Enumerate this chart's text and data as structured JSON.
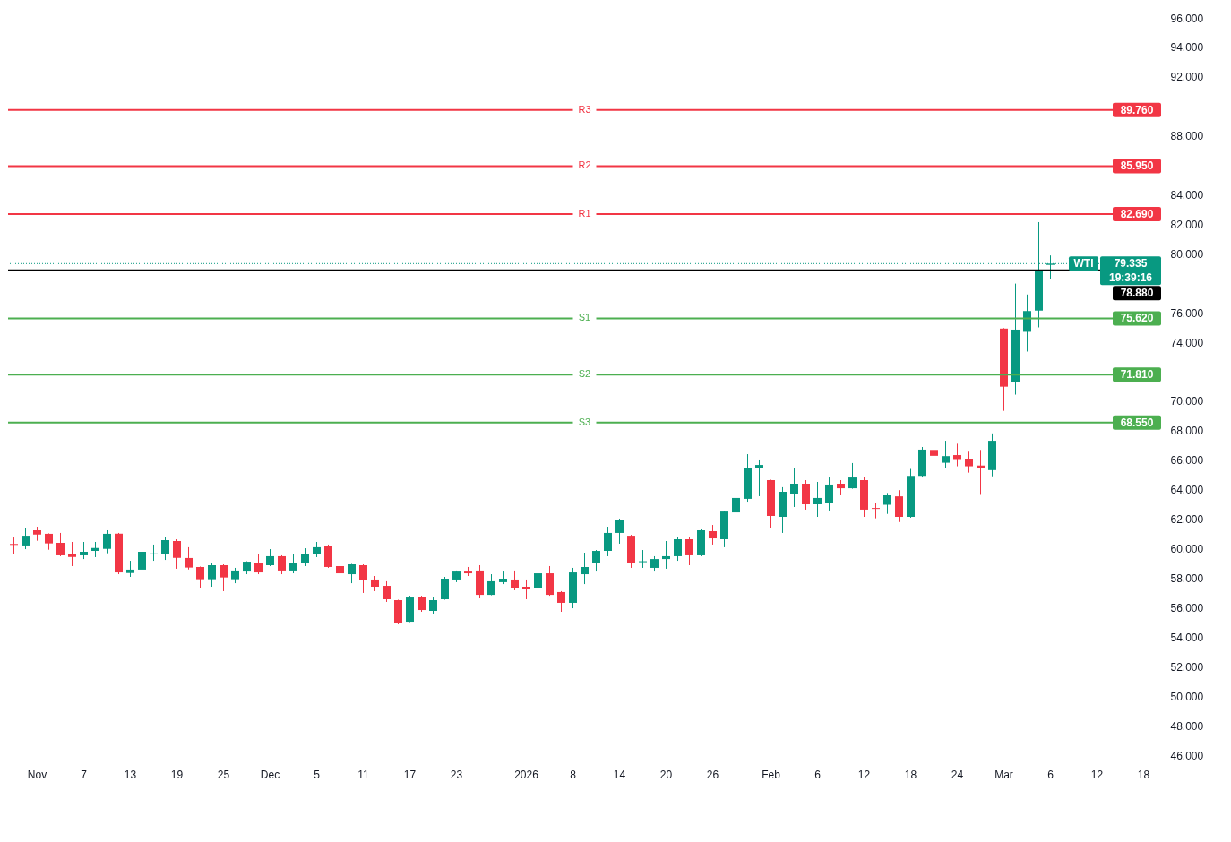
{
  "chart_data": {
    "type": "candlestick",
    "categories": [
      null,
      null,
      "Nov",
      null,
      null,
      null,
      "7",
      null,
      null,
      null,
      "13",
      null,
      null,
      null,
      "19",
      null,
      null,
      null,
      "25",
      null,
      null,
      null,
      "Dec",
      null,
      null,
      null,
      "5",
      null,
      null,
      null,
      "11",
      null,
      null,
      null,
      "17",
      null,
      null,
      null,
      "23",
      null,
      null,
      null,
      null,
      null,
      "2026",
      null,
      null,
      null,
      "8",
      null,
      null,
      null,
      "14",
      null,
      null,
      null,
      "20",
      null,
      null,
      null,
      "26",
      null,
      null,
      null,
      null,
      "Feb",
      null,
      null,
      null,
      "6",
      null,
      null,
      null,
      "12",
      null,
      null,
      null,
      "18",
      null,
      null,
      null,
      "24",
      null,
      null,
      null,
      "Mar",
      null,
      null,
      null,
      "6",
      null,
      null,
      null,
      "12",
      null,
      null,
      null,
      "18",
      null
    ],
    "ohlc": [
      [
        60.32,
        60.76,
        59.61,
        60.26
      ],
      [
        60.22,
        61.37,
        59.97,
        60.88
      ],
      [
        61.25,
        61.49,
        60.54,
        60.96
      ],
      [
        61.01,
        61.04,
        59.93,
        60.36
      ],
      [
        60.4,
        61.07,
        59.49,
        59.55
      ],
      [
        59.61,
        60.46,
        58.82,
        59.44
      ],
      [
        59.55,
        60.46,
        59.3,
        59.79
      ],
      [
        59.85,
        60.46,
        59.43,
        60.05
      ],
      [
        59.99,
        61.25,
        59.69,
        61.01
      ],
      [
        61.02,
        61.07,
        58.27,
        58.39
      ],
      [
        58.35,
        59.18,
        58.09,
        58.58
      ],
      [
        58.58,
        60.46,
        58.55,
        59.79
      ],
      [
        59.62,
        60.28,
        59.18,
        59.68
      ],
      [
        59.61,
        60.82,
        59.24,
        60.58
      ],
      [
        60.52,
        60.64,
        58.64,
        59.38
      ],
      [
        59.37,
        60.1,
        58.59,
        58.72
      ],
      [
        58.76,
        58.79,
        57.36,
        57.93
      ],
      [
        57.93,
        59.06,
        57.42,
        58.88
      ],
      [
        58.88,
        58.94,
        57.12,
        58.05
      ],
      [
        57.93,
        58.7,
        57.66,
        58.52
      ],
      [
        58.45,
        59.15,
        58.27,
        59.12
      ],
      [
        59.06,
        59.61,
        58.27,
        58.39
      ],
      [
        58.88,
        59.97,
        58.82,
        59.49
      ],
      [
        59.49,
        59.55,
        58.27,
        58.52
      ],
      [
        58.52,
        59.61,
        58.33,
        59.06
      ],
      [
        59.0,
        60.03,
        58.82,
        59.67
      ],
      [
        59.61,
        60.46,
        59.43,
        60.1
      ],
      [
        60.16,
        60.28,
        58.7,
        58.76
      ],
      [
        58.82,
        59.18,
        58.15,
        58.33
      ],
      [
        58.27,
        58.97,
        57.66,
        58.94
      ],
      [
        58.88,
        58.94,
        57.0,
        57.85
      ],
      [
        57.91,
        58.15,
        57.12,
        57.42
      ],
      [
        57.48,
        57.79,
        56.39,
        56.57
      ],
      [
        56.51,
        56.54,
        54.87,
        54.99
      ],
      [
        55.05,
        56.81,
        55.02,
        56.69
      ],
      [
        56.75,
        56.81,
        55.72,
        55.84
      ],
      [
        55.78,
        56.69,
        55.6,
        56.51
      ],
      [
        56.57,
        58.09,
        56.54,
        57.97
      ],
      [
        57.91,
        58.52,
        57.73,
        58.45
      ],
      [
        58.45,
        58.76,
        58.15,
        58.33
      ],
      [
        58.52,
        58.88,
        56.63,
        56.87
      ],
      [
        56.87,
        58.27,
        56.84,
        57.79
      ],
      [
        57.73,
        58.45,
        57.6,
        57.97
      ],
      [
        57.91,
        58.52,
        57.18,
        57.36
      ],
      [
        57.42,
        57.91,
        56.57,
        57.24
      ],
      [
        57.36,
        58.45,
        56.33,
        58.33
      ],
      [
        58.33,
        58.82,
        56.81,
        56.87
      ],
      [
        57.06,
        57.12,
        55.72,
        56.33
      ],
      [
        56.33,
        58.7,
        55.96,
        58.39
      ],
      [
        58.27,
        59.73,
        57.6,
        58.76
      ],
      [
        59.0,
        59.91,
        58.45,
        59.85
      ],
      [
        59.85,
        61.49,
        59.49,
        61.07
      ],
      [
        61.07,
        62.04,
        60.34,
        61.92
      ],
      [
        60.88,
        60.94,
        58.7,
        59.0
      ],
      [
        59.09,
        59.91,
        58.7,
        59.15
      ],
      [
        58.7,
        59.49,
        58.45,
        59.3
      ],
      [
        59.3,
        60.52,
        58.64,
        59.49
      ],
      [
        59.49,
        60.82,
        59.18,
        60.64
      ],
      [
        60.64,
        60.76,
        58.88,
        59.55
      ],
      [
        59.55,
        61.31,
        59.49,
        61.25
      ],
      [
        61.19,
        61.61,
        60.28,
        60.7
      ],
      [
        60.64,
        62.55,
        60.1,
        62.52
      ],
      [
        62.46,
        63.5,
        61.98,
        63.44
      ],
      [
        63.38,
        66.41,
        63.19,
        65.44
      ],
      [
        65.44,
        66.05,
        63.56,
        65.68
      ],
      [
        64.65,
        64.68,
        61.37,
        62.22
      ],
      [
        62.16,
        64.17,
        61.07,
        63.86
      ],
      [
        63.68,
        65.5,
        62.83,
        64.41
      ],
      [
        64.41,
        64.65,
        62.65,
        63.01
      ],
      [
        63.01,
        64.53,
        62.16,
        63.44
      ],
      [
        63.07,
        64.83,
        62.59,
        64.35
      ],
      [
        64.41,
        64.65,
        63.62,
        64.1
      ],
      [
        64.1,
        65.81,
        64.07,
        64.83
      ],
      [
        64.65,
        64.89,
        62.16,
        62.65
      ],
      [
        62.76,
        63.13,
        62.06,
        62.7
      ],
      [
        62.98,
        63.78,
        62.36,
        63.62
      ],
      [
        63.55,
        63.97,
        61.81,
        62.16
      ],
      [
        62.16,
        65.41,
        62.1,
        64.94
      ],
      [
        64.94,
        66.9,
        64.83,
        66.72
      ],
      [
        66.7,
        67.08,
        65.91,
        66.3
      ],
      [
        65.83,
        67.32,
        65.46,
        66.28
      ],
      [
        66.35,
        67.12,
        65.59,
        66.08
      ],
      [
        66.11,
        66.58,
        65.16,
        65.59
      ],
      [
        65.64,
        66.7,
        63.65,
        65.46
      ],
      [
        65.33,
        67.82,
        64.91,
        67.32
      ],
      [
        74.93,
        74.96,
        69.35,
        70.99
      ],
      [
        71.29,
        77.98,
        70.45,
        74.86
      ],
      [
        74.71,
        77.24,
        73.37,
        76.12
      ],
      [
        76.15,
        82.15,
        75.01,
        78.88
      ],
      [
        79.25,
        79.89,
        78.28,
        79.335
      ],
      null,
      null,
      null,
      null,
      null,
      null,
      null,
      null,
      null
    ],
    "colors": [
      "#f23645",
      "#089981",
      "#f23645",
      "#f23645",
      "#f23645",
      "#f23645",
      "#089981",
      "#089981",
      "#089981",
      "#f23645",
      "#089981",
      "#089981",
      "#089981",
      "#089981",
      "#f23645",
      "#f23645",
      "#f23645",
      "#089981",
      "#f23645",
      "#089981",
      "#089981",
      "#f23645",
      "#089981",
      "#f23645",
      "#089981",
      "#089981",
      "#089981",
      "#f23645",
      "#f23645",
      "#089981",
      "#f23645",
      "#f23645",
      "#f23645",
      "#f23645",
      "#089981",
      "#f23645",
      "#089981",
      "#089981",
      "#089981",
      "#f23645",
      "#f23645",
      "#089981",
      "#089981",
      "#f23645",
      "#f23645",
      "#089981",
      "#f23645",
      "#f23645",
      "#089981",
      "#089981",
      "#089981",
      "#089981",
      "#089981",
      "#f23645",
      "#089981",
      "#089981",
      "#089981",
      "#089981",
      "#f23645",
      "#089981",
      "#f23645",
      "#089981",
      "#089981",
      "#089981",
      "#089981",
      "#f23645",
      "#089981",
      "#089981",
      "#f23645",
      "#089981",
      "#089981",
      "#f23645",
      "#089981",
      "#f23645",
      "#f23645",
      "#089981",
      "#f23645",
      "#089981",
      "#089981",
      "#f23645",
      "#089981",
      "#f23645",
      "#f23645",
      "#f23645",
      "#089981",
      "#f23645",
      "#089981",
      "#089981",
      "#089981",
      "#089981",
      null,
      null,
      null,
      null,
      null,
      null,
      null,
      null,
      null
    ],
    "ylim": [
      46,
      96
    ],
    "yticks": [
      {
        "value": 96,
        "label": "96.000"
      },
      {
        "value": 94,
        "label": "94.000"
      },
      {
        "value": 92,
        "label": "92.000"
      },
      {
        "value": 88,
        "label": "88.000"
      },
      {
        "value": 84,
        "label": "84.000"
      },
      {
        "value": 82,
        "label": "82.000"
      },
      {
        "value": 80,
        "label": "80.000"
      },
      {
        "value": 76,
        "label": "76.000"
      },
      {
        "value": 74,
        "label": "74.000"
      },
      {
        "value": 70,
        "label": "70.000"
      },
      {
        "value": 68,
        "label": "68.000"
      },
      {
        "value": 66,
        "label": "66.000"
      },
      {
        "value": 64,
        "label": "64.000"
      },
      {
        "value": 62,
        "label": "62.000"
      },
      {
        "value": 60,
        "label": "60.000"
      },
      {
        "value": 58,
        "label": "58.000"
      },
      {
        "value": 56,
        "label": "56.000"
      },
      {
        "value": 54,
        "label": "54.000"
      },
      {
        "value": 52,
        "label": "52.000"
      },
      {
        "value": 50,
        "label": "50.000"
      },
      {
        "value": 48,
        "label": "48.000"
      },
      {
        "value": 46,
        "label": "46.000"
      }
    ],
    "ref_lines": [
      {
        "axis": "y",
        "value": 89.76,
        "label": "R3",
        "color": "#f23645",
        "line_style": "solid"
      },
      {
        "axis": "y",
        "value": 85.95,
        "label": "R2",
        "color": "#f23645",
        "line_style": "solid"
      },
      {
        "axis": "y",
        "value": 82.69,
        "label": "R1",
        "color": "#f23645",
        "line_style": "solid"
      },
      {
        "axis": "y",
        "value": 79.335,
        "label": "WTI",
        "color": "#089981",
        "line_style": "dotted"
      },
      {
        "axis": "y",
        "value": 78.88,
        "color": "#000000",
        "line_style": "solid"
      },
      {
        "axis": "y",
        "value": 75.62,
        "label": "S1",
        "color": "#4caf50",
        "line_style": "solid"
      },
      {
        "axis": "y",
        "value": 71.81,
        "label": "S2",
        "color": "#4caf50",
        "line_style": "solid"
      },
      {
        "axis": "y",
        "value": 68.55,
        "label": "S3",
        "color": "#4caf50",
        "line_style": "solid"
      }
    ],
    "annotations": [
      {
        "text": "89.760",
        "y": 89.76
      },
      {
        "text": "85.950",
        "y": 85.95
      },
      {
        "text": "82.690",
        "y": 82.69
      },
      {
        "text": "79.335",
        "y": 79.335
      },
      {
        "text": "19:39:16",
        "y": 79.335
      },
      {
        "text": "78.880",
        "y": 78.88
      },
      {
        "text": "75.620",
        "y": 75.62
      },
      {
        "text": "71.810",
        "y": 71.81
      },
      {
        "text": "68.550",
        "y": 68.55
      }
    ]
  }
}
